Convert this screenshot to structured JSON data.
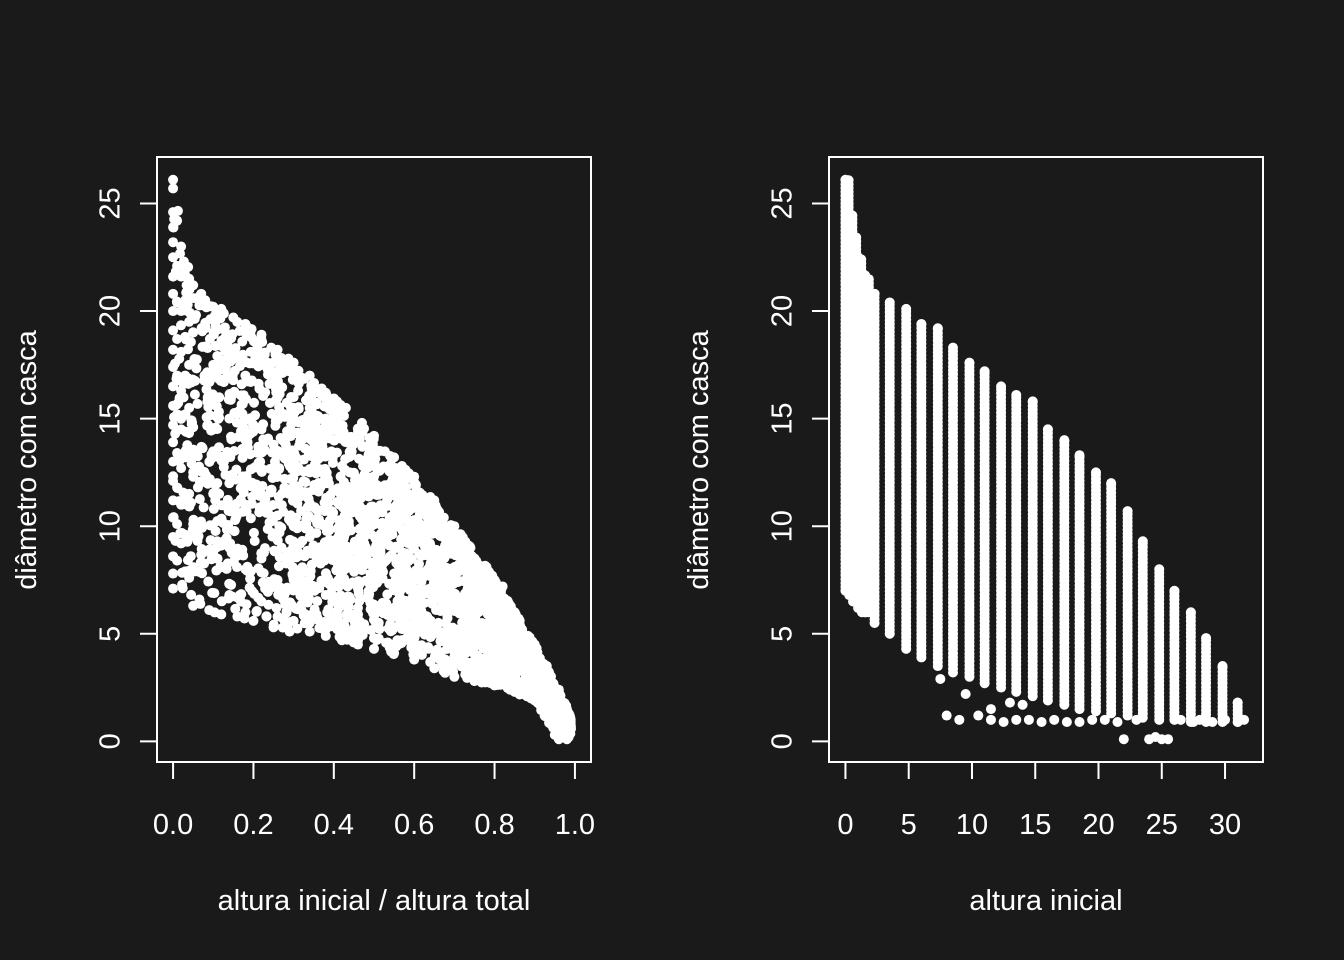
{
  "colors": {
    "background": "#1a1a1a",
    "foreground": "#ffffff"
  },
  "chart_data": [
    {
      "type": "scatter",
      "xlabel": "altura inicial / altura total",
      "ylabel": "diâmetro com casca",
      "xlim": [
        -0.04,
        1.04
      ],
      "ylim": [
        -0.96,
        27.16
      ],
      "xticks": [
        0.0,
        0.2,
        0.4,
        0.6,
        0.8,
        1.0
      ],
      "xtick_labels": [
        "0.0",
        "0.2",
        "0.4",
        "0.6",
        "0.8",
        "1.0"
      ],
      "yticks": [
        0,
        5,
        10,
        15,
        20,
        25
      ],
      "ytick_labels": [
        "0",
        "5",
        "10",
        "15",
        "20",
        "25"
      ],
      "grid": false,
      "points": [
        [
          0.0,
          26.1
        ],
        [
          0.0,
          25.7
        ],
        [
          0.0,
          24.6
        ],
        [
          0.0,
          23.9
        ],
        [
          0.0,
          23.2
        ],
        [
          0.0,
          22.5
        ],
        [
          0.0,
          21.6
        ],
        [
          0.0,
          20.8
        ],
        [
          0.0,
          20.0
        ],
        [
          0.0,
          19.1
        ],
        [
          0.0,
          18.2
        ],
        [
          0.0,
          17.4
        ],
        [
          0.0,
          16.5
        ],
        [
          0.0,
          15.6
        ],
        [
          0.0,
          14.7
        ],
        [
          0.0,
          13.9
        ],
        [
          0.0,
          13.0
        ],
        [
          0.0,
          12.1
        ],
        [
          0.0,
          11.2
        ],
        [
          0.0,
          10.4
        ],
        [
          0.0,
          9.5
        ],
        [
          0.0,
          8.6
        ],
        [
          0.0,
          7.8
        ],
        [
          0.0,
          7.1
        ],
        [
          0.01,
          24.2
        ],
        [
          0.01,
          22.1
        ],
        [
          0.01,
          20.4
        ],
        [
          0.01,
          18.7
        ],
        [
          0.01,
          17.0
        ],
        [
          0.01,
          15.2
        ],
        [
          0.01,
          13.4
        ],
        [
          0.01,
          11.8
        ],
        [
          0.01,
          10.1
        ],
        [
          0.01,
          8.4
        ],
        [
          0.02,
          23.0
        ],
        [
          0.02,
          21.6
        ],
        [
          0.02,
          20.0
        ],
        [
          0.02,
          18.1
        ],
        [
          0.02,
          16.3
        ],
        [
          0.02,
          14.5
        ],
        [
          0.02,
          12.7
        ],
        [
          0.02,
          11.0
        ],
        [
          0.02,
          9.2
        ],
        [
          0.03,
          22.0
        ],
        [
          0.03,
          20.5
        ],
        [
          0.03,
          18.8
        ],
        [
          0.03,
          17.0
        ],
        [
          0.03,
          15.2
        ],
        [
          0.03,
          13.2
        ],
        [
          0.03,
          11.4
        ],
        [
          0.03,
          9.6
        ],
        [
          0.03,
          7.9
        ],
        [
          0.04,
          21.5
        ],
        [
          0.04,
          19.5
        ],
        [
          0.04,
          17.5
        ],
        [
          0.04,
          15.5
        ],
        [
          0.04,
          13.5
        ],
        [
          0.04,
          11.5
        ],
        [
          0.04,
          9.5
        ],
        [
          0.04,
          7.6
        ],
        [
          0.05,
          21.2
        ],
        [
          0.05,
          19.0
        ],
        [
          0.05,
          16.8
        ],
        [
          0.05,
          14.6
        ],
        [
          0.05,
          12.3
        ],
        [
          0.05,
          10.1
        ],
        [
          0.05,
          8.1
        ],
        [
          0.05,
          6.3
        ],
        [
          0.07,
          20.8
        ],
        [
          0.08,
          20.5
        ],
        [
          0.1,
          20.2
        ],
        [
          0.12,
          20.1
        ],
        [
          0.15,
          19.7
        ],
        [
          0.18,
          19.4
        ],
        [
          0.22,
          18.9
        ],
        [
          0.26,
          18.2
        ],
        [
          0.3,
          17.6
        ],
        [
          0.34,
          17.0
        ],
        [
          0.38,
          16.2
        ],
        [
          0.43,
          15.5
        ],
        [
          0.47,
          14.8
        ],
        [
          0.5,
          14.2
        ],
        [
          0.55,
          13.2
        ],
        [
          0.6,
          12.3
        ],
        [
          0.65,
          11.2
        ],
        [
          0.7,
          10.0
        ],
        [
          0.74,
          9.0
        ],
        [
          0.78,
          8.1
        ],
        [
          0.82,
          7.2
        ],
        [
          0.86,
          5.7
        ],
        [
          0.9,
          4.4
        ],
        [
          0.93,
          3.4
        ],
        [
          0.96,
          2.4
        ],
        [
          0.98,
          1.4
        ],
        [
          0.09,
          6.1
        ],
        [
          0.12,
          5.9
        ],
        [
          0.16,
          5.8
        ],
        [
          0.2,
          5.6
        ],
        [
          0.25,
          5.3
        ],
        [
          0.29,
          5.1
        ],
        [
          0.34,
          5.1
        ],
        [
          0.38,
          4.9
        ],
        [
          0.42,
          4.7
        ],
        [
          0.46,
          4.5
        ],
        [
          0.5,
          4.3
        ],
        [
          0.55,
          4.1
        ],
        [
          0.6,
          3.8
        ],
        [
          0.65,
          3.4
        ],
        [
          0.7,
          3.0
        ],
        [
          0.75,
          2.8
        ],
        [
          0.8,
          2.6
        ],
        [
          0.85,
          2.3
        ],
        [
          0.9,
          1.9
        ],
        [
          0.93,
          1.4
        ],
        [
          0.95,
          0.3
        ],
        [
          0.96,
          0.1
        ],
        [
          0.98,
          0.1
        ],
        [
          0.99,
          0.6
        ],
        [
          0.1,
          17.5
        ],
        [
          0.1,
          14.5
        ],
        [
          0.1,
          11.5
        ],
        [
          0.1,
          8.5
        ],
        [
          0.14,
          18.0
        ],
        [
          0.14,
          15.0
        ],
        [
          0.14,
          12.0
        ],
        [
          0.14,
          9.0
        ],
        [
          0.14,
          6.8
        ],
        [
          0.18,
          17.0
        ],
        [
          0.18,
          14.0
        ],
        [
          0.18,
          11.0
        ],
        [
          0.18,
          8.0
        ],
        [
          0.18,
          6.0
        ],
        [
          0.22,
          17.5
        ],
        [
          0.22,
          14.5
        ],
        [
          0.22,
          11.5
        ],
        [
          0.22,
          8.5
        ],
        [
          0.22,
          6.5
        ],
        [
          0.26,
          16.5
        ],
        [
          0.26,
          13.5
        ],
        [
          0.26,
          10.5
        ],
        [
          0.26,
          7.5
        ],
        [
          0.26,
          5.8
        ],
        [
          0.3,
          16.0
        ],
        [
          0.3,
          13.0
        ],
        [
          0.3,
          10.0
        ],
        [
          0.3,
          7.5
        ],
        [
          0.3,
          5.6
        ],
        [
          0.34,
          15.5
        ],
        [
          0.34,
          12.5
        ],
        [
          0.34,
          9.5
        ],
        [
          0.34,
          7.0
        ],
        [
          0.34,
          5.5
        ],
        [
          0.38,
          15.0
        ],
        [
          0.38,
          12.0
        ],
        [
          0.38,
          9.0
        ],
        [
          0.38,
          6.8
        ],
        [
          0.38,
          5.2
        ],
        [
          0.42,
          14.5
        ],
        [
          0.42,
          11.5
        ],
        [
          0.42,
          8.8
        ],
        [
          0.42,
          6.5
        ],
        [
          0.42,
          5.0
        ],
        [
          0.46,
          14.0
        ],
        [
          0.46,
          11.0
        ],
        [
          0.46,
          8.5
        ],
        [
          0.46,
          6.2
        ],
        [
          0.5,
          13.0
        ],
        [
          0.5,
          10.5
        ],
        [
          0.5,
          8.0
        ],
        [
          0.5,
          6.0
        ],
        [
          0.5,
          4.8
        ],
        [
          0.55,
          12.5
        ],
        [
          0.55,
          10.0
        ],
        [
          0.55,
          7.8
        ],
        [
          0.55,
          5.8
        ],
        [
          0.6,
          11.5
        ],
        [
          0.6,
          9.5
        ],
        [
          0.6,
          7.5
        ],
        [
          0.6,
          5.5
        ],
        [
          0.6,
          4.3
        ],
        [
          0.65,
          10.5
        ],
        [
          0.65,
          8.8
        ],
        [
          0.65,
          7.0
        ],
        [
          0.65,
          5.2
        ],
        [
          0.7,
          9.5
        ],
        [
          0.7,
          8.0
        ],
        [
          0.7,
          6.5
        ],
        [
          0.7,
          4.8
        ],
        [
          0.7,
          3.6
        ],
        [
          0.75,
          8.5
        ],
        [
          0.75,
          7.2
        ],
        [
          0.75,
          5.8
        ],
        [
          0.75,
          4.4
        ],
        [
          0.8,
          7.5
        ],
        [
          0.8,
          6.4
        ],
        [
          0.8,
          5.2
        ],
        [
          0.8,
          4.0
        ],
        [
          0.8,
          3.0
        ],
        [
          0.85,
          6.0
        ],
        [
          0.85,
          5.0
        ],
        [
          0.85,
          4.0
        ],
        [
          0.85,
          3.0
        ],
        [
          0.9,
          4.5
        ],
        [
          0.9,
          3.6
        ],
        [
          0.9,
          2.8
        ],
        [
          0.9,
          2.2
        ],
        [
          0.93,
          3.5
        ],
        [
          0.93,
          2.6
        ],
        [
          0.93,
          1.9
        ],
        [
          0.96,
          2.3
        ],
        [
          0.96,
          1.6
        ],
        [
          0.96,
          1.0
        ],
        [
          0.98,
          1.5
        ],
        [
          0.98,
          0.9
        ],
        [
          0.99,
          0.7
        ]
      ]
    },
    {
      "type": "scatter",
      "xlabel": "altura inicial",
      "ylabel": "diâmetro com casca",
      "xlim": [
        -1.3,
        33.0
      ],
      "ylim": [
        -0.96,
        27.16
      ],
      "xticks": [
        0,
        5,
        10,
        15,
        20,
        25,
        30
      ],
      "xtick_labels": [
        "0",
        "5",
        "10",
        "15",
        "20",
        "25",
        "30"
      ],
      "yticks": [
        0,
        5,
        10,
        15,
        20,
        25
      ],
      "ytick_labels": [
        "0",
        "5",
        "10",
        "15",
        "20",
        "25"
      ],
      "grid": false,
      "columns": [
        {
          "x": 0.0,
          "min": 7.0,
          "max": 26.1
        },
        {
          "x": 0.3,
          "min": 6.8,
          "max": 24.5
        },
        {
          "x": 0.6,
          "min": 6.5,
          "max": 23.5
        },
        {
          "x": 1.0,
          "min": 6.2,
          "max": 22.5
        },
        {
          "x": 1.3,
          "min": 6.0,
          "max": 21.8
        },
        {
          "x": 1.6,
          "min": 6.0,
          "max": 21.5
        },
        {
          "x": 2.3,
          "min": 5.5,
          "max": 20.8
        },
        {
          "x": 3.5,
          "min": 5.0,
          "max": 20.4
        },
        {
          "x": 4.8,
          "min": 4.3,
          "max": 20.1
        },
        {
          "x": 6.0,
          "min": 3.9,
          "max": 19.4
        },
        {
          "x": 7.3,
          "min": 3.5,
          "max": 19.2
        },
        {
          "x": 8.5,
          "min": 3.2,
          "max": 18.3
        },
        {
          "x": 9.8,
          "min": 3.0,
          "max": 17.6
        },
        {
          "x": 11.0,
          "min": 2.7,
          "max": 17.2
        },
        {
          "x": 12.3,
          "min": 2.5,
          "max": 16.5
        },
        {
          "x": 13.5,
          "min": 2.3,
          "max": 16.1
        },
        {
          "x": 14.8,
          "min": 2.1,
          "max": 15.8
        },
        {
          "x": 16.0,
          "min": 1.9,
          "max": 14.5
        },
        {
          "x": 17.3,
          "min": 1.7,
          "max": 14.0
        },
        {
          "x": 18.5,
          "min": 1.5,
          "max": 13.3
        },
        {
          "x": 19.8,
          "min": 1.4,
          "max": 12.5
        },
        {
          "x": 21.0,
          "min": 1.3,
          "max": 12.0
        },
        {
          "x": 22.3,
          "min": 1.2,
          "max": 10.7
        },
        {
          "x": 23.5,
          "min": 1.1,
          "max": 9.3
        },
        {
          "x": 24.8,
          "min": 1.0,
          "max": 8.0
        },
        {
          "x": 26.0,
          "min": 1.0,
          "max": 7.0
        },
        {
          "x": 27.3,
          "min": 0.9,
          "max": 6.0
        },
        {
          "x": 28.5,
          "min": 0.9,
          "max": 4.8
        },
        {
          "x": 29.8,
          "min": 0.9,
          "max": 3.5
        },
        {
          "x": 31.0,
          "min": 0.9,
          "max": 1.8
        }
      ],
      "points": [
        [
          8.0,
          1.2
        ],
        [
          9.0,
          1.0
        ],
        [
          10.5,
          1.2
        ],
        [
          11.5,
          1.0
        ],
        [
          12.5,
          0.9
        ],
        [
          13.5,
          1.0
        ],
        [
          14.5,
          1.0
        ],
        [
          15.5,
          0.9
        ],
        [
          16.5,
          1.0
        ],
        [
          17.5,
          0.9
        ],
        [
          18.5,
          0.9
        ],
        [
          19.5,
          1.0
        ],
        [
          20.5,
          1.0
        ],
        [
          21.5,
          0.9
        ],
        [
          22.0,
          0.1
        ],
        [
          23.0,
          1.0
        ],
        [
          24.0,
          0.1
        ],
        [
          24.5,
          0.2
        ],
        [
          25.0,
          0.1
        ],
        [
          25.5,
          0.1
        ],
        [
          26.5,
          1.0
        ],
        [
          27.5,
          0.9
        ],
        [
          28.0,
          1.0
        ],
        [
          29.0,
          0.9
        ],
        [
          30.0,
          1.0
        ],
        [
          31.0,
          0.9
        ],
        [
          31.5,
          1.0
        ],
        [
          7.5,
          2.9
        ],
        [
          9.5,
          2.2
        ],
        [
          11.5,
          1.5
        ],
        [
          13.0,
          1.8
        ],
        [
          14.0,
          1.7
        ]
      ]
    }
  ]
}
